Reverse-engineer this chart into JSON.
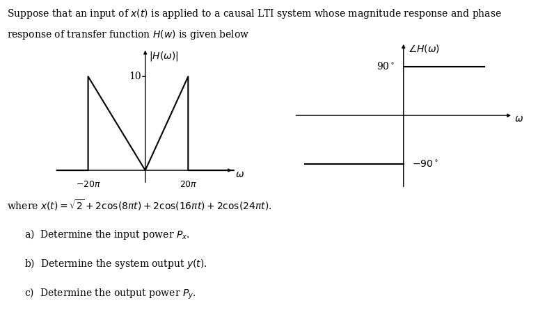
{
  "line1": "Suppose that an input of $x(t)$ is applied to a causal LTI system whose magnitude response and phase",
  "line2": "response of transfer function $H(w)$ is given below",
  "mag_ylabel": "$|H(\\omega)|$",
  "mag_xlabel": "$\\omega$",
  "phase_ylabel": "$\\angle H(\\omega)$",
  "phase_xlabel": "$\\omega$",
  "mag_10_label": "10",
  "mag_neg20pi_label": "$-20\\pi$",
  "mag_20pi_label": "$20\\pi$",
  "phase_90_label": "90$^\\circ$",
  "phase_neg90_label": "$-90^\\circ$",
  "where_text": "where $x(t) = \\sqrt{2}+2\\cos(8\\pi t)+2\\cos(16\\pi t)+2\\cos(24\\pi t)$.",
  "part_a": "a)  Determine the input power $P_x$.",
  "part_b": "b)  Determine the system output $y(t)$.",
  "part_c": "c)  Determine the output power $P_y$.",
  "line_color": "black",
  "text_color": "black",
  "bg_color": "white",
  "fontsize_main": 10,
  "fontsize_label": 9
}
